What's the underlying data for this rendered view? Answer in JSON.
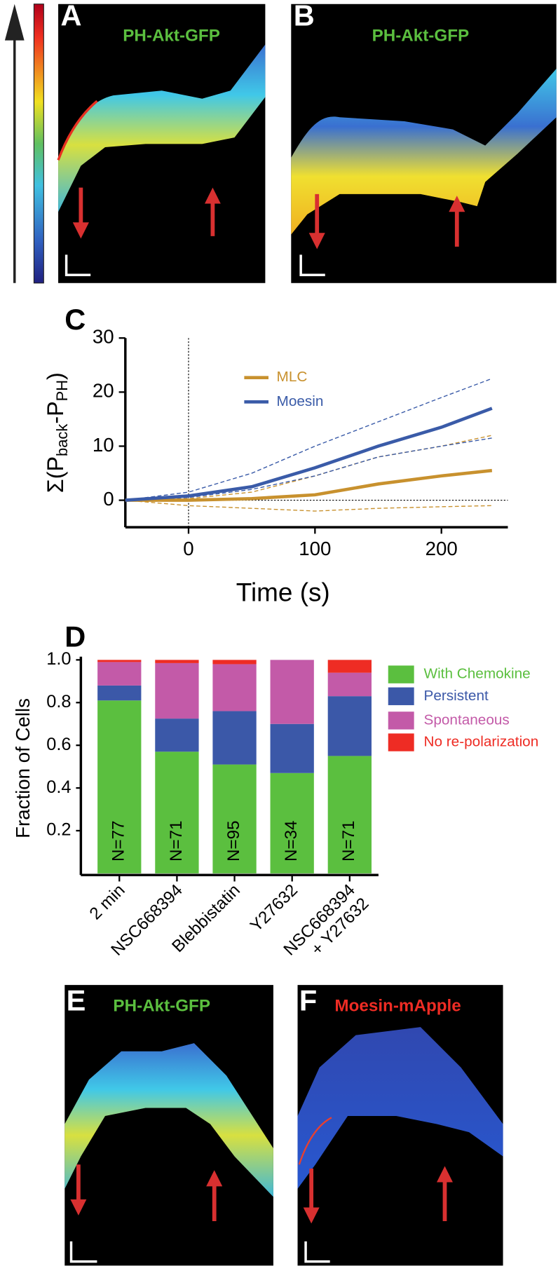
{
  "panels": {
    "A": {
      "label": "A",
      "title": "PH-Akt-GFP"
    },
    "B": {
      "label": "B",
      "title": "PH-Akt-GFP"
    },
    "E": {
      "label": "E",
      "title": "PH-Akt-GFP"
    },
    "F": {
      "label": "F",
      "title": "Moesin-mApple"
    }
  },
  "chart_data": [
    {
      "type": "line",
      "panel_label": "C",
      "ylabel_parts": [
        "Σ(P",
        "back",
        "-P",
        "PH",
        ")"
      ],
      "xlabel": "Time (s)",
      "x": [
        -50,
        0,
        50,
        100,
        150,
        200,
        240
      ],
      "series": [
        {
          "name": "MLC",
          "color": "#c8912e",
          "values": [
            0,
            0,
            0.3,
            1,
            3,
            4.5,
            5.5
          ],
          "lower": [
            0,
            -1,
            -1.5,
            -2,
            -1.5,
            -1.2,
            -1
          ],
          "upper": [
            0,
            0.3,
            1.5,
            4.5,
            8,
            10,
            12
          ]
        },
        {
          "name": "Moesin",
          "color": "#3a5ba8",
          "values": [
            0,
            0.8,
            2.5,
            6,
            10,
            13.5,
            17
          ],
          "lower": [
            0,
            0.5,
            2,
            4.5,
            8,
            10,
            11.5
          ],
          "upper": [
            0,
            1.5,
            5,
            10,
            14.5,
            19,
            22.5
          ]
        }
      ],
      "xlim": [
        -50,
        250
      ],
      "ylim": [
        -5,
        30
      ],
      "xticks": [
        0,
        100,
        200
      ],
      "yticks": [
        0,
        10,
        20,
        30
      ]
    },
    {
      "type": "bar",
      "stacked": true,
      "panel_label": "D",
      "ylabel": "Fraction of Cells",
      "categories": [
        "2 min",
        "NSC668394",
        "Blebbistatin",
        "Y27632",
        "NSC668394\n+ Y27632"
      ],
      "series": [
        {
          "name": "With Chemokine",
          "color": "#5bbf3f",
          "values": [
            0.81,
            0.57,
            0.51,
            0.47,
            0.55
          ]
        },
        {
          "name": "Persistent",
          "color": "#3b58a8",
          "values": [
            0.07,
            0.155,
            0.25,
            0.23,
            0.28
          ]
        },
        {
          "name": "Spontaneous",
          "color": "#c35aa8",
          "values": [
            0.11,
            0.26,
            0.22,
            0.3,
            0.11
          ]
        },
        {
          "name": "No re-polarization",
          "color": "#ee2c24",
          "values": [
            0.01,
            0.015,
            0.02,
            0,
            0.06
          ]
        }
      ],
      "annotations": [
        "N=77",
        "N=71",
        "N=95",
        "N=34",
        "N=71"
      ],
      "ylim": [
        0,
        1
      ],
      "yticks": [
        0.2,
        0.4,
        0.6,
        0.8,
        {
          "value": 1,
          "label": "1.0"
        }
      ],
      "legend": "right"
    }
  ]
}
